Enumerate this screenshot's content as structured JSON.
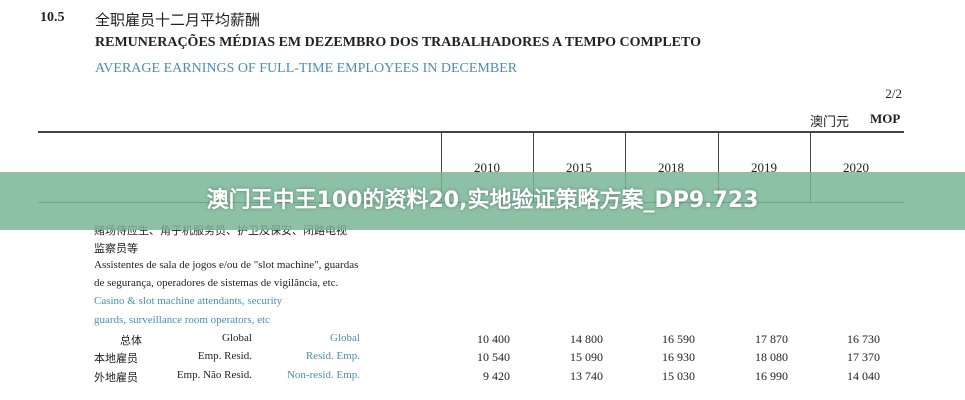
{
  "table_number": "10.5",
  "title_zh": "全职雇员十二月平均薪酬",
  "title_pt": "REMUNERAÇÕES MÉDIAS EM DEZEMBRO DOS TRABALHADORES A TEMPO COMPLETO",
  "title_en": "AVERAGE EARNINGS OF FULL-TIME EMPLOYEES IN DECEMBER",
  "page": "2/2",
  "unit_zh": "澳门元",
  "unit": "MOP",
  "years": [
    "2010",
    "2015",
    "2018",
    "2019",
    "2020"
  ],
  "category": {
    "zh_1": "赌场侍应生、角子机服务员、护卫及保安、闭路电视",
    "zh_2": "监察员等",
    "pt_1": "Assistentes de sala de jogos e/ou de \"slot machine\", guardas",
    "pt_2": "de segurança, operadores de sistemas de vigilância, etc.",
    "en_1": "Casino & slot machine attendants, security",
    "en_2": "guards, surveillance room operators, etc"
  },
  "rows": [
    {
      "zh": "总体",
      "pt": "Global",
      "en": "Global",
      "values": [
        "10 400",
        "14 800",
        "16 590",
        "17 870",
        "16 730"
      ]
    },
    {
      "zh": "本地雇员",
      "pt": "Emp. Resid.",
      "en": "Resid. Emp.",
      "values": [
        "10 540",
        "15 090",
        "16 930",
        "18 080",
        "17 370"
      ]
    },
    {
      "zh": "外地雇员",
      "pt": "Emp. Não Resid.",
      "en": "Non-resid. Emp.",
      "values": [
        "9 420",
        "13 740",
        "15 030",
        "16 990",
        "14 040"
      ]
    }
  ],
  "banner": {
    "text": "澳门王中王100的资料20,实地验证策略方案_DP9.723",
    "color": "#8cc2a5"
  }
}
